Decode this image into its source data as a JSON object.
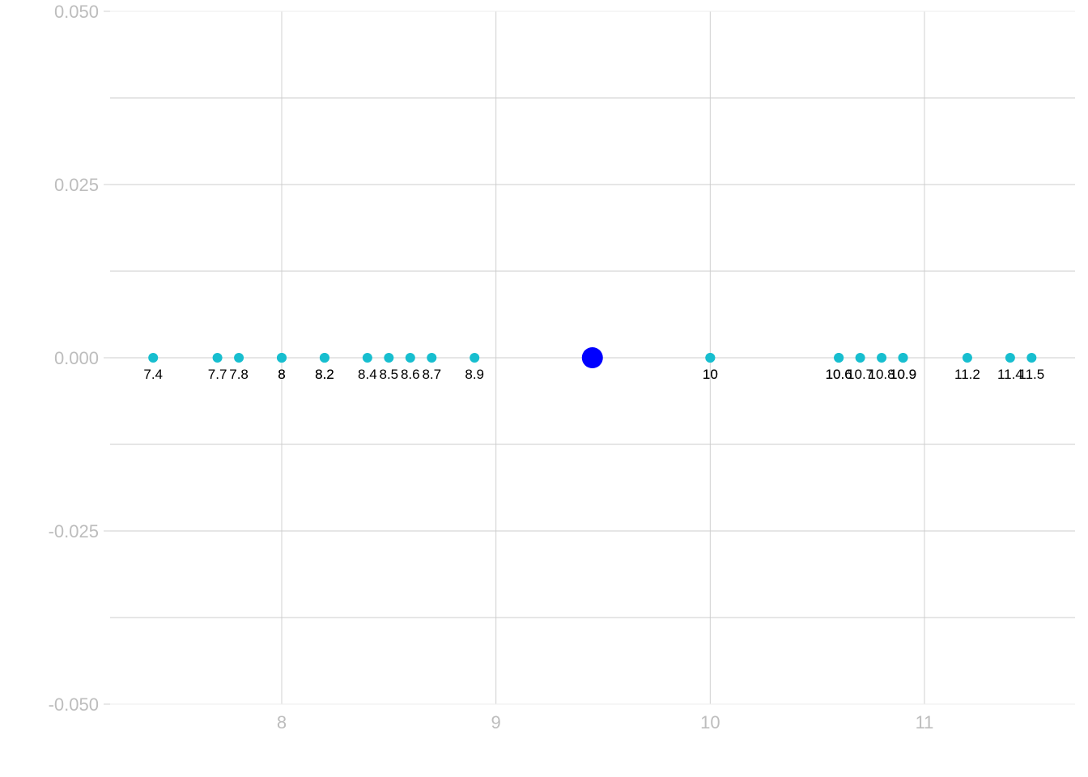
{
  "chart_data": {
    "type": "scatter",
    "title": "",
    "xlabel": "",
    "ylabel": "",
    "xlim": [
      7.2,
      11.7
    ],
    "ylim": [
      -0.05,
      0.05
    ],
    "x_ticks": [
      "8",
      "9",
      "10",
      "11"
    ],
    "x_tick_values": [
      8,
      9,
      10,
      11
    ],
    "y_ticks": [
      "0.050",
      "0.025",
      "0.000",
      "-0.025",
      "-0.050"
    ],
    "y_tick_values": [
      0.05,
      0.025,
      0.0,
      -0.025,
      -0.05
    ],
    "grid": true,
    "legend": "none",
    "series": [
      {
        "color": "#17becf",
        "x": [
          7.4,
          7.7,
          7.8,
          8,
          8,
          8.2,
          8.2,
          8.4,
          8.5,
          8.6,
          8.7,
          8.9,
          10,
          10,
          10.6,
          10.6,
          10.7,
          10.8,
          10.9,
          10.9,
          11.2,
          11.4,
          11.5
        ],
        "y": [
          0,
          0,
          0,
          0,
          0,
          0,
          0,
          0,
          0,
          0,
          0,
          0,
          0,
          0,
          0,
          0,
          0,
          0,
          0,
          0,
          0,
          0,
          0
        ],
        "labels": [
          "7.4",
          "7.7",
          "7.8",
          "8",
          "8",
          "8.2",
          "8.2",
          "8.4",
          "8.5",
          "8.6",
          "8.7",
          "8.9",
          "10",
          "10",
          "10.6",
          "10.6",
          "10.7",
          "10.8",
          "10.9",
          "10.9",
          "11.2",
          "11.4",
          "11.5"
        ]
      },
      {
        "color": "#0000ff",
        "x": [
          9.45
        ],
        "y": [
          0
        ],
        "labels": []
      }
    ]
  }
}
